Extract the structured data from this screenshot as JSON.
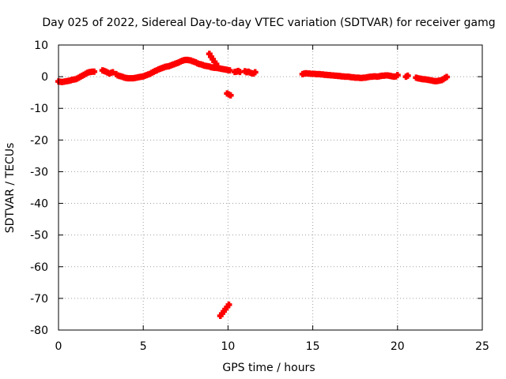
{
  "chart_data": {
    "type": "scatter",
    "title": "Day 025 of 2022, Sidereal Day-to-day VTEC variation (SDTVAR) for receiver gamg",
    "xlabel": "GPS time / hours",
    "ylabel": "SDTVAR / TECUs",
    "xlim": [
      0,
      25
    ],
    "ylim": [
      -80,
      10
    ],
    "xticks": [
      0,
      5,
      10,
      15,
      20,
      25
    ],
    "yticks": [
      10,
      0,
      -10,
      -20,
      -30,
      -40,
      -50,
      -60,
      -70,
      -80
    ],
    "grid": true,
    "marker": "+",
    "colors": {
      "series": "#ff0000",
      "axes": "#000000",
      "grid": "#a0a0a0"
    },
    "series": [
      {
        "name": "SDTVAR",
        "points": [
          [
            0.0,
            -1.5
          ],
          [
            0.1,
            -1.6
          ],
          [
            0.2,
            -1.7
          ],
          [
            0.3,
            -1.6
          ],
          [
            0.4,
            -1.5
          ],
          [
            0.5,
            -1.4
          ],
          [
            0.6,
            -1.3
          ],
          [
            0.7,
            -1.2
          ],
          [
            0.8,
            -1.0
          ],
          [
            0.9,
            -0.9
          ],
          [
            1.0,
            -0.8
          ],
          [
            1.1,
            -0.6
          ],
          [
            1.2,
            -0.3
          ],
          [
            1.3,
            0.0
          ],
          [
            1.4,
            0.3
          ],
          [
            1.5,
            0.6
          ],
          [
            1.6,
            0.9
          ],
          [
            1.7,
            1.2
          ],
          [
            1.8,
            1.4
          ],
          [
            1.9,
            1.5
          ],
          [
            2.0,
            1.6
          ],
          [
            2.1,
            1.6
          ],
          [
            2.6,
            2.0
          ],
          [
            2.7,
            1.8
          ],
          [
            2.8,
            1.6
          ],
          [
            2.9,
            1.3
          ],
          [
            3.0,
            1.0
          ],
          [
            3.1,
            1.2
          ],
          [
            3.2,
            1.4
          ],
          [
            3.4,
            0.8
          ],
          [
            3.5,
            0.4
          ],
          [
            3.6,
            0.2
          ],
          [
            3.7,
            0.1
          ],
          [
            3.8,
            -0.1
          ],
          [
            3.9,
            -0.3
          ],
          [
            4.0,
            -0.4
          ],
          [
            4.1,
            -0.5
          ],
          [
            4.2,
            -0.5
          ],
          [
            4.3,
            -0.5
          ],
          [
            4.4,
            -0.5
          ],
          [
            4.5,
            -0.4
          ],
          [
            4.6,
            -0.3
          ],
          [
            4.7,
            -0.2
          ],
          [
            4.8,
            -0.1
          ],
          [
            4.9,
            0.0
          ],
          [
            5.0,
            0.1
          ],
          [
            5.1,
            0.3
          ],
          [
            5.2,
            0.5
          ],
          [
            5.3,
            0.7
          ],
          [
            5.4,
            0.9
          ],
          [
            5.5,
            1.2
          ],
          [
            5.6,
            1.5
          ],
          [
            5.7,
            1.8
          ],
          [
            5.8,
            2.0
          ],
          [
            5.9,
            2.3
          ],
          [
            6.0,
            2.5
          ],
          [
            6.1,
            2.7
          ],
          [
            6.2,
            2.9
          ],
          [
            6.3,
            3.1
          ],
          [
            6.4,
            3.2
          ],
          [
            6.5,
            3.3
          ],
          [
            6.6,
            3.5
          ],
          [
            6.7,
            3.7
          ],
          [
            6.8,
            3.9
          ],
          [
            6.9,
            4.1
          ],
          [
            7.0,
            4.3
          ],
          [
            7.1,
            4.5
          ],
          [
            7.2,
            4.8
          ],
          [
            7.3,
            5.0
          ],
          [
            7.4,
            5.2
          ],
          [
            7.5,
            5.3
          ],
          [
            7.6,
            5.3
          ],
          [
            7.7,
            5.2
          ],
          [
            7.8,
            5.1
          ],
          [
            7.9,
            4.9
          ],
          [
            8.0,
            4.7
          ],
          [
            8.1,
            4.5
          ],
          [
            8.2,
            4.2
          ],
          [
            8.3,
            4.0
          ],
          [
            8.4,
            3.9
          ],
          [
            8.5,
            3.7
          ],
          [
            8.6,
            3.5
          ],
          [
            8.7,
            3.4
          ],
          [
            8.8,
            3.3
          ],
          [
            8.9,
            3.2
          ],
          [
            9.0,
            3.0
          ],
          [
            9.1,
            2.9
          ],
          [
            9.2,
            2.8
          ],
          [
            9.3,
            2.8
          ],
          [
            9.4,
            2.7
          ],
          [
            9.5,
            2.6
          ],
          [
            9.6,
            2.5
          ],
          [
            9.7,
            2.4
          ],
          [
            9.8,
            2.3
          ],
          [
            9.9,
            2.2
          ],
          [
            10.0,
            2.1
          ],
          [
            10.1,
            2.0
          ],
          [
            8.9,
            7.2
          ],
          [
            9.0,
            6.3
          ],
          [
            9.1,
            5.5
          ],
          [
            9.2,
            4.7
          ],
          [
            9.3,
            4.0
          ],
          [
            9.95,
            -5.3
          ],
          [
            10.05,
            -5.6
          ],
          [
            10.15,
            -5.9
          ],
          [
            9.55,
            -75.5
          ],
          [
            9.65,
            -74.8
          ],
          [
            9.75,
            -74.1
          ],
          [
            9.85,
            -73.4
          ],
          [
            9.95,
            -72.7
          ],
          [
            10.05,
            -72.0
          ],
          [
            10.4,
            1.5
          ],
          [
            10.5,
            1.6
          ],
          [
            10.6,
            1.8
          ],
          [
            10.7,
            1.5
          ],
          [
            11.0,
            1.7
          ],
          [
            11.1,
            1.4
          ],
          [
            11.2,
            1.6
          ],
          [
            11.3,
            1.3
          ],
          [
            11.4,
            1.1
          ],
          [
            11.5,
            1.0
          ],
          [
            11.6,
            1.4
          ],
          [
            14.4,
            0.8
          ],
          [
            14.5,
            1.0
          ],
          [
            14.6,
            1.1
          ],
          [
            14.7,
            1.0
          ],
          [
            14.8,
            1.0
          ],
          [
            14.9,
            0.9
          ],
          [
            15.0,
            0.9
          ],
          [
            15.1,
            0.9
          ],
          [
            15.2,
            0.8
          ],
          [
            15.3,
            0.8
          ],
          [
            15.4,
            0.8
          ],
          [
            15.5,
            0.7
          ],
          [
            15.6,
            0.7
          ],
          [
            15.7,
            0.6
          ],
          [
            15.8,
            0.6
          ],
          [
            15.9,
            0.5
          ],
          [
            16.0,
            0.5
          ],
          [
            16.1,
            0.4
          ],
          [
            16.2,
            0.4
          ],
          [
            16.3,
            0.3
          ],
          [
            16.4,
            0.3
          ],
          [
            16.5,
            0.2
          ],
          [
            16.6,
            0.2
          ],
          [
            16.7,
            0.1
          ],
          [
            16.8,
            0.1
          ],
          [
            16.9,
            0.0
          ],
          [
            17.0,
            0.0
          ],
          [
            17.1,
            0.0
          ],
          [
            17.2,
            -0.1
          ],
          [
            17.3,
            -0.2
          ],
          [
            17.4,
            -0.2
          ],
          [
            17.5,
            -0.3
          ],
          [
            17.6,
            -0.3
          ],
          [
            17.7,
            -0.3
          ],
          [
            17.8,
            -0.4
          ],
          [
            17.9,
            -0.4
          ],
          [
            18.0,
            -0.3
          ],
          [
            18.1,
            -0.3
          ],
          [
            18.2,
            -0.2
          ],
          [
            18.3,
            -0.1
          ],
          [
            18.4,
            0.0
          ],
          [
            18.5,
            0.0
          ],
          [
            18.6,
            0.1
          ],
          [
            18.7,
            0.1
          ],
          [
            18.8,
            0.0
          ],
          [
            18.9,
            0.1
          ],
          [
            19.0,
            0.2
          ],
          [
            19.1,
            0.3
          ],
          [
            19.2,
            0.3
          ],
          [
            19.3,
            0.4
          ],
          [
            19.4,
            0.4
          ],
          [
            19.5,
            0.3
          ],
          [
            19.6,
            0.2
          ],
          [
            19.7,
            0.1
          ],
          [
            19.8,
            0.0
          ],
          [
            19.9,
            0.1
          ],
          [
            20.0,
            0.5
          ],
          [
            20.5,
            0.0
          ],
          [
            20.6,
            0.3
          ],
          [
            21.1,
            -0.3
          ],
          [
            21.2,
            -0.5
          ],
          [
            21.3,
            -0.6
          ],
          [
            21.4,
            -0.7
          ],
          [
            21.5,
            -0.8
          ],
          [
            21.6,
            -0.8
          ],
          [
            21.7,
            -0.9
          ],
          [
            21.8,
            -1.0
          ],
          [
            21.9,
            -1.1
          ],
          [
            22.0,
            -1.2
          ],
          [
            22.1,
            -1.3
          ],
          [
            22.2,
            -1.4
          ],
          [
            22.3,
            -1.4
          ],
          [
            22.4,
            -1.3
          ],
          [
            22.5,
            -1.2
          ],
          [
            22.6,
            -1.1
          ],
          [
            22.7,
            -0.8
          ],
          [
            22.8,
            -0.4
          ],
          [
            22.9,
            -0.1
          ]
        ]
      }
    ]
  }
}
